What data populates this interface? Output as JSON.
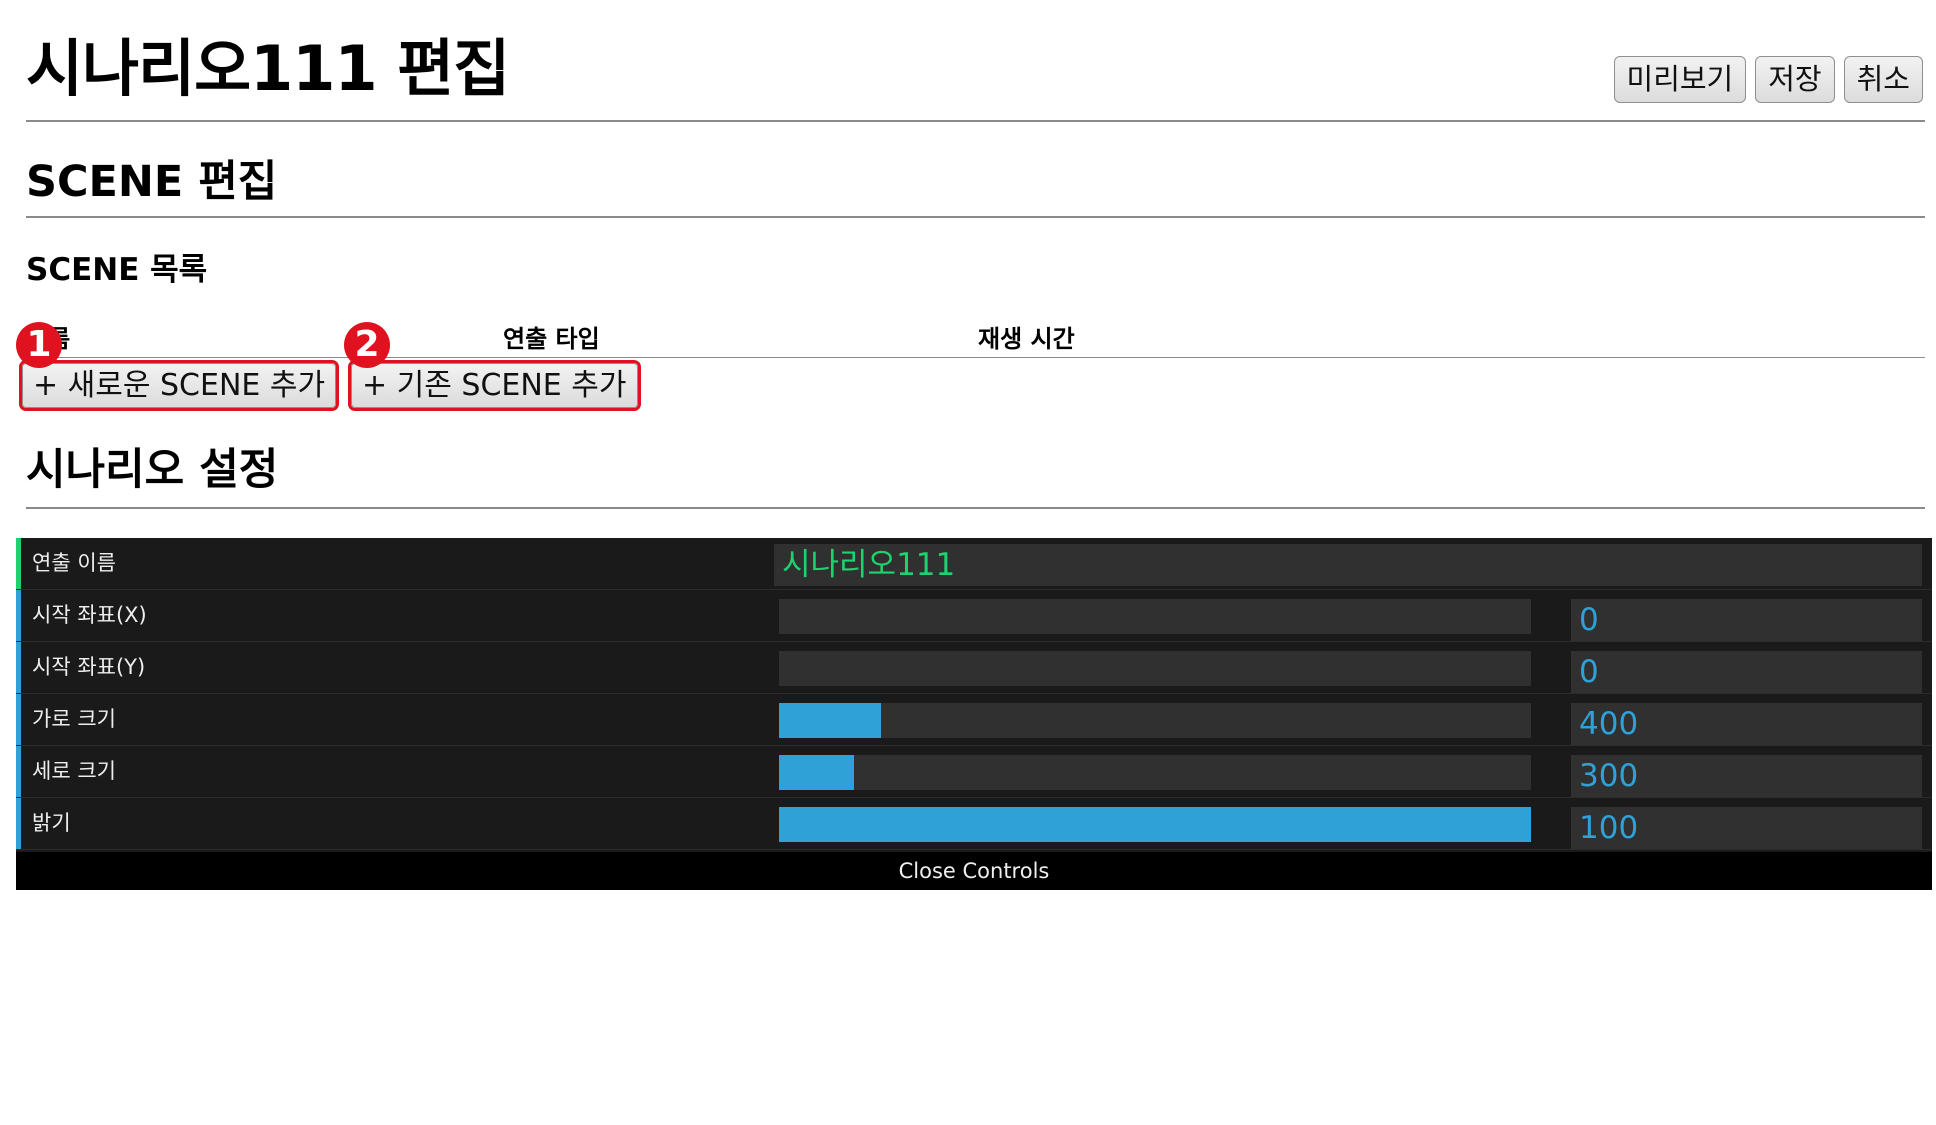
{
  "header": {
    "title": "시나리오111 편집",
    "actions": {
      "preview": "미리보기",
      "save": "저장",
      "cancel": "취소"
    }
  },
  "scene_section": {
    "title": "SCENE 편집",
    "list_title": "SCENE 목록",
    "columns": [
      "이름",
      "연출 타입",
      "재생 시간"
    ],
    "add_new_label": "+ 새로운 SCENE 추가",
    "add_existing_label": "+ 기존 SCENE 추가",
    "markers": [
      "1",
      "2"
    ]
  },
  "scenario_section": {
    "title": "시나리오 설정"
  },
  "controls": {
    "name_label": "연출 이름",
    "name_value": "시나리오111",
    "rows": [
      {
        "label": "시작 좌표(X)",
        "value": "0",
        "level": 0
      },
      {
        "label": "시작 좌표(Y)",
        "value": "0",
        "level": 0
      },
      {
        "label": "가로 크기",
        "value": "400",
        "level": 0.135
      },
      {
        "label": "세로 크기",
        "value": "300",
        "level": 0.1
      },
      {
        "label": "밝기",
        "value": "100",
        "level": 1.0
      }
    ],
    "close_label": "Close Controls"
  },
  "colors": {
    "accent": "#2fa1d6",
    "string_accent": "#1ed36f",
    "highlight": "#e0121f",
    "panel_bg": "#1a1a1a"
  }
}
